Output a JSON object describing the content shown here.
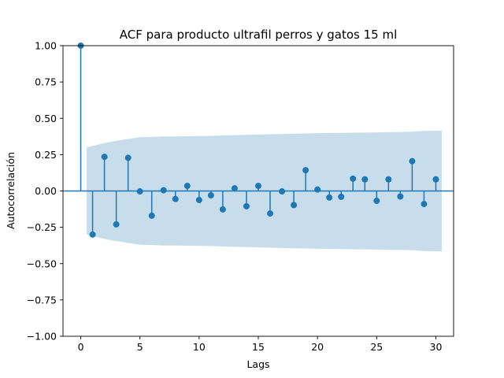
{
  "chart_data": {
    "type": "scatter",
    "subtype": "stem",
    "title": "ACF para producto ultrafil perros y gatos 15 ml",
    "xlabel": "Lags",
    "ylabel": "Autocorrelación",
    "xlim": [
      -1.5,
      31.5
    ],
    "ylim": [
      -1.0,
      1.0
    ],
    "xticks": [
      0,
      5,
      10,
      15,
      20,
      25,
      30
    ],
    "xtick_labels": [
      "0",
      "5",
      "10",
      "15",
      "20",
      "25",
      "30"
    ],
    "yticks": [
      -1.0,
      -0.75,
      -0.5,
      -0.25,
      0.0,
      0.25,
      0.5,
      0.75,
      1.0
    ],
    "ytick_labels": [
      "−1.00",
      "−0.75",
      "−0.50",
      "−0.25",
      "0.00",
      "0.25",
      "0.50",
      "0.75",
      "1.00"
    ],
    "grid": false,
    "legend": "none",
    "lags": [
      0,
      1,
      2,
      3,
      4,
      5,
      6,
      7,
      8,
      9,
      10,
      11,
      12,
      13,
      14,
      15,
      16,
      17,
      18,
      19,
      20,
      21,
      22,
      23,
      24,
      25,
      26,
      27,
      28,
      29,
      30
    ],
    "values": [
      1.0,
      -0.3,
      0.235,
      -0.23,
      0.228,
      -0.003,
      -0.17,
      0.005,
      -0.055,
      0.035,
      -0.062,
      -0.03,
      -0.127,
      0.018,
      -0.105,
      0.035,
      -0.155,
      -0.003,
      -0.097,
      0.143,
      0.01,
      -0.045,
      -0.04,
      0.085,
      0.08,
      -0.068,
      0.08,
      -0.038,
      0.205,
      -0.09,
      0.08
    ],
    "confidence_band": {
      "lags": [
        0.5,
        1,
        2,
        3,
        4,
        5,
        6,
        7,
        8,
        9,
        10,
        11,
        12,
        13,
        14,
        15,
        16,
        17,
        18,
        19,
        20,
        21,
        22,
        23,
        24,
        25,
        26,
        27,
        28,
        29,
        30.5
      ],
      "upper": [
        0.3,
        0.31,
        0.33,
        0.345,
        0.358,
        0.37,
        0.372,
        0.375,
        0.375,
        0.377,
        0.378,
        0.379,
        0.382,
        0.384,
        0.386,
        0.388,
        0.39,
        0.392,
        0.394,
        0.396,
        0.398,
        0.399,
        0.4,
        0.401,
        0.402,
        0.403,
        0.405,
        0.406,
        0.408,
        0.413,
        0.415
      ],
      "lower": [
        -0.3,
        -0.31,
        -0.33,
        -0.345,
        -0.358,
        -0.37,
        -0.372,
        -0.375,
        -0.375,
        -0.377,
        -0.378,
        -0.379,
        -0.382,
        -0.384,
        -0.386,
        -0.388,
        -0.39,
        -0.392,
        -0.394,
        -0.396,
        -0.398,
        -0.399,
        -0.4,
        -0.401,
        -0.402,
        -0.403,
        -0.405,
        -0.406,
        -0.408,
        -0.413,
        -0.415
      ]
    },
    "colors": {
      "stem": "#1f77b4",
      "band": "#1f77b4",
      "band_opacity": 0.25
    }
  }
}
